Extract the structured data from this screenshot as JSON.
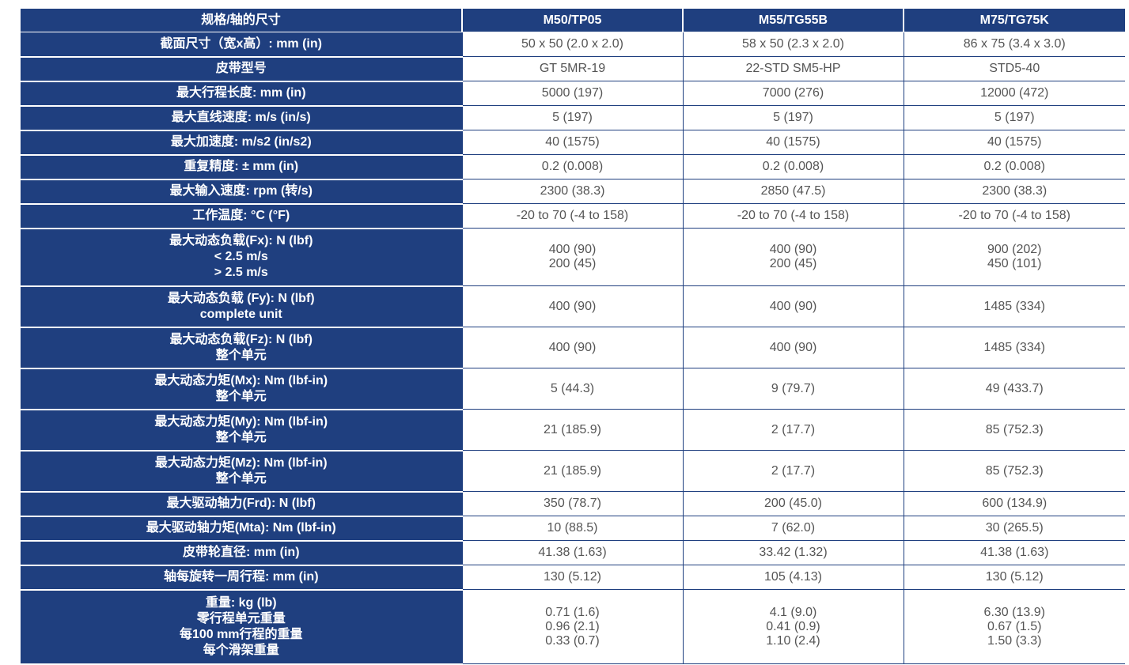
{
  "colors": {
    "header_bg": "#1f3f7f",
    "header_text": "#ffffff",
    "cell_text": "#555555"
  },
  "header": {
    "label": "规格/轴的尺寸",
    "models": [
      "M50/TP05",
      "M55/TG55B",
      "M75/TG75K"
    ]
  },
  "rows": [
    {
      "label": [
        "截面尺寸（宽x高）: mm (in)"
      ],
      "values": [
        [
          "50 x 50 (2.0 x 2.0)"
        ],
        [
          "58 x 50 (2.3 x 2.0)"
        ],
        [
          "86 x 75 (3.4 x 3.0)"
        ]
      ]
    },
    {
      "label": [
        "皮带型号"
      ],
      "values": [
        [
          "GT 5MR-19"
        ],
        [
          "22-STD SM5-HP"
        ],
        [
          "STD5-40"
        ]
      ]
    },
    {
      "label": [
        "最大行程长度: mm (in)"
      ],
      "values": [
        [
          "5000 (197)"
        ],
        [
          "7000 (276)"
        ],
        [
          "12000 (472)"
        ]
      ]
    },
    {
      "label": [
        "最大直线速度: m/s (in/s)"
      ],
      "values": [
        [
          "5 (197)"
        ],
        [
          "5 (197)"
        ],
        [
          "5 (197)"
        ]
      ]
    },
    {
      "label": [
        "最大加速度: m/s2 (in/s2)"
      ],
      "values": [
        [
          "40 (1575)"
        ],
        [
          "40 (1575)"
        ],
        [
          "40 (1575)"
        ]
      ]
    },
    {
      "label": [
        "重复精度: ± mm (in)"
      ],
      "values": [
        [
          "0.2 (0.008)"
        ],
        [
          "0.2 (0.008)"
        ],
        [
          "0.2 (0.008)"
        ]
      ]
    },
    {
      "label": [
        "最大输入速度: rpm (转/s)"
      ],
      "values": [
        [
          "2300 (38.3)"
        ],
        [
          "2850 (47.5)"
        ],
        [
          "2300 (38.3)"
        ]
      ]
    },
    {
      "label": [
        "工作温度: °C (°F)"
      ],
      "values": [
        [
          "-20 to 70 (-4 to 158)"
        ],
        [
          "-20 to 70 (-4 to 158)"
        ],
        [
          "-20 to 70 (-4 to 158)"
        ]
      ]
    },
    {
      "label": [
        "最大动态负载(Fx): N (lbf)",
        "< 2.5 m/s",
        "> 2.5 m/s"
      ],
      "values": [
        [
          "400 (90)",
          "200 (45)"
        ],
        [
          "400 (90)",
          "200 (45)"
        ],
        [
          "900 (202)",
          "450 (101)"
        ]
      ]
    },
    {
      "label": [
        "最大动态负载 (Fy): N (lbf)",
        "complete unit"
      ],
      "values": [
        [
          "400 (90)"
        ],
        [
          "400 (90)"
        ],
        [
          "1485 (334)"
        ]
      ]
    },
    {
      "label": [
        "最大动态负载(Fz): N (lbf)",
        "整个单元"
      ],
      "values": [
        [
          "400 (90)"
        ],
        [
          "400 (90)"
        ],
        [
          "1485 (334)"
        ]
      ]
    },
    {
      "label": [
        "最大动态力矩(Mx): Nm (lbf-in)",
        "整个单元"
      ],
      "values": [
        [
          "5 (44.3)"
        ],
        [
          "9 (79.7)"
        ],
        [
          "49 (433.7)"
        ]
      ]
    },
    {
      "label": [
        "最大动态力矩(My): Nm (lbf-in)",
        "整个单元"
      ],
      "values": [
        [
          "21 (185.9)"
        ],
        [
          "2 (17.7)"
        ],
        [
          "85 (752.3)"
        ]
      ]
    },
    {
      "label": [
        "最大动态力矩(Mz): Nm (lbf-in)",
        "整个单元"
      ],
      "values": [
        [
          "21 (185.9)"
        ],
        [
          "2 (17.7)"
        ],
        [
          "85 (752.3)"
        ]
      ]
    },
    {
      "label": [
        "最大驱动轴力(Frd): N (lbf)"
      ],
      "values": [
        [
          "350 (78.7)"
        ],
        [
          "200 (45.0)"
        ],
        [
          "600 (134.9)"
        ]
      ]
    },
    {
      "label": [
        "最大驱动轴力矩(Mta): Nm (lbf-in)"
      ],
      "values": [
        [
          "10 (88.5)"
        ],
        [
          "7 (62.0)"
        ],
        [
          "30 (265.5)"
        ]
      ]
    },
    {
      "label": [
        "皮带轮直径: mm (in)"
      ],
      "values": [
        [
          "41.38 (1.63)"
        ],
        [
          "33.42 (1.32)"
        ],
        [
          "41.38 (1.63)"
        ]
      ]
    },
    {
      "label": [
        "轴每旋转一周行程: mm (in)"
      ],
      "values": [
        [
          "130 (5.12)"
        ],
        [
          "105 (4.13)"
        ],
        [
          "130 (5.12)"
        ]
      ]
    },
    {
      "label": [
        "重量: kg (lb)",
        "零行程单元重量",
        "每100 mm行程的重量",
        "每个滑架重量"
      ],
      "values": [
        [
          "0.71 (1.6)",
          "0.96 (2.1)",
          "0.33 (0.7)"
        ],
        [
          "4.1 (9.0)",
          "0.41 (0.9)",
          "1.10 (2.4)"
        ],
        [
          "6.30 (13.9)",
          "0.67 (1.5)",
          "1.50 (3.3)"
        ]
      ]
    }
  ]
}
